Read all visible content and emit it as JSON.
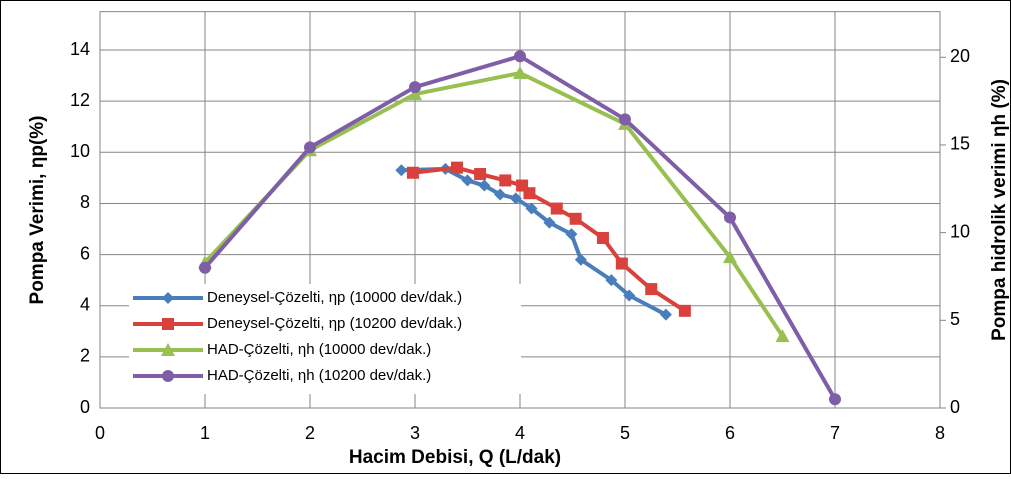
{
  "chart_data": {
    "type": "line",
    "xlabel": "Hacim Debisi, Q (L/dak)",
    "ylabel": "Pompa Verimi, ηp(%)",
    "y2label": "Pompa hidrolik verimi ηh (%)",
    "xlim": [
      0,
      8
    ],
    "xticks": [
      0,
      1,
      2,
      3,
      4,
      5,
      6,
      7,
      8
    ],
    "ylim": [
      0,
      15.5
    ],
    "yticks": [
      0,
      2,
      4,
      6,
      8,
      10,
      12,
      14
    ],
    "y2lim": [
      0,
      22.6
    ],
    "y2ticks": [
      0,
      5,
      10,
      15,
      20
    ],
    "grid": true,
    "legend": "lower left",
    "series": [
      {
        "name": "Deneysel-Çözelti, ηp (10000 dev/dak.)",
        "color": "#4a7ebb",
        "marker": "diamond",
        "x": [
          2.87,
          3.29,
          3.5,
          3.66,
          3.81,
          3.96,
          4.11,
          4.28,
          4.49,
          4.58,
          4.87,
          5.04,
          5.39
        ],
        "values": [
          9.3,
          9.35,
          8.9,
          8.7,
          8.35,
          8.2,
          7.8,
          7.25,
          6.8,
          5.8,
          5.0,
          4.4,
          3.65
        ]
      },
      {
        "name": "Deneysel-Çözelti, ηp (10200 dev/dak.)",
        "color": "#d9413d",
        "marker": "square",
        "x": [
          2.98,
          3.4,
          3.62,
          3.86,
          4.02,
          4.09,
          4.35,
          4.53,
          4.79,
          4.97,
          5.25,
          5.57
        ],
        "values": [
          9.2,
          9.4,
          9.15,
          8.9,
          8.7,
          8.4,
          7.8,
          7.4,
          6.65,
          5.65,
          4.65,
          3.8
        ]
      },
      {
        "name": "HAD-Çözelti, ηh (10000 dev/dak.)",
        "color": "#98c050",
        "marker": "triangle",
        "axis": "y2",
        "x": [
          1,
          2,
          3,
          4,
          5,
          6,
          6.5
        ],
        "values": [
          8.3,
          14.7,
          17.9,
          19.1,
          16.2,
          8.6,
          4.1
        ]
      },
      {
        "name": "HAD-Çözelti, ηh (10200 dev/dak.)",
        "color": "#7f5ea8",
        "marker": "circle",
        "axis": "y2",
        "x": [
          1,
          2,
          3,
          4,
          5,
          6,
          7
        ],
        "values": [
          8.0,
          14.86,
          18.3,
          20.06,
          16.46,
          10.86,
          0.5
        ]
      }
    ]
  }
}
